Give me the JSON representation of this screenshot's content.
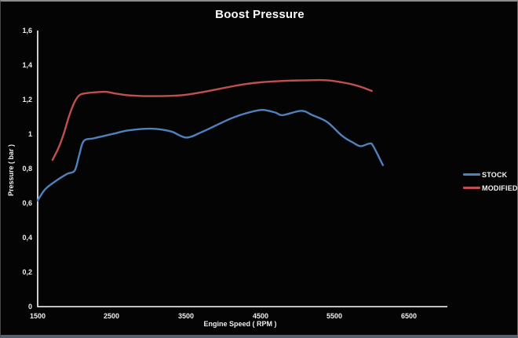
{
  "window": {
    "title": "Boost Pressure"
  },
  "chart_data": {
    "type": "line",
    "title": "Boost Pressure",
    "xlabel": "Engine Speed ( RPM )",
    "ylabel": "Pressure ( bar )",
    "background": "#000000",
    "axis_color": "#ffffff",
    "grid": false,
    "legend_position": "right",
    "x_axis": {
      "min": 1500,
      "max": 7000,
      "tick_interval": 1000
    },
    "y_axis": {
      "min": 0,
      "max": 1.6,
      "tick_interval": 0.2
    },
    "x_ticks": [
      "1500",
      "2500",
      "3500",
      "4500",
      "5500",
      "6500"
    ],
    "y_ticks": [
      "1,6",
      "1,4",
      "1,2",
      "1",
      "0,8",
      "0,6",
      "0,4",
      "0,2",
      "0"
    ],
    "series": [
      {
        "name": "STOCK",
        "color": "#4F81BD",
        "points": [
          [
            1500,
            0.615
          ],
          [
            1600,
            0.68
          ],
          [
            1750,
            0.73
          ],
          [
            1900,
            0.77
          ],
          [
            2000,
            0.79
          ],
          [
            2060,
            0.88
          ],
          [
            2120,
            0.96
          ],
          [
            2250,
            0.975
          ],
          [
            2400,
            0.99
          ],
          [
            2550,
            1.005
          ],
          [
            2700,
            1.02
          ],
          [
            2900,
            1.03
          ],
          [
            3100,
            1.03
          ],
          [
            3300,
            1.015
          ],
          [
            3500,
            0.98
          ],
          [
            3700,
            1.01
          ],
          [
            3900,
            1.05
          ],
          [
            4100,
            1.09
          ],
          [
            4300,
            1.12
          ],
          [
            4520,
            1.14
          ],
          [
            4700,
            1.125
          ],
          [
            4800,
            1.11
          ],
          [
            5050,
            1.135
          ],
          [
            5200,
            1.11
          ],
          [
            5400,
            1.07
          ],
          [
            5600,
            0.99
          ],
          [
            5750,
            0.95
          ],
          [
            5850,
            0.93
          ],
          [
            5970,
            0.945
          ],
          [
            6020,
            0.93
          ],
          [
            6150,
            0.82
          ]
        ]
      },
      {
        "name": "MODIFIED",
        "color": "#C0504D",
        "points": [
          [
            1700,
            0.85
          ],
          [
            1780,
            0.92
          ],
          [
            1850,
            1.0
          ],
          [
            1920,
            1.1
          ],
          [
            1990,
            1.18
          ],
          [
            2060,
            1.225
          ],
          [
            2150,
            1.237
          ],
          [
            2300,
            1.243
          ],
          [
            2420,
            1.245
          ],
          [
            2550,
            1.235
          ],
          [
            2700,
            1.226
          ],
          [
            2900,
            1.221
          ],
          [
            3100,
            1.22
          ],
          [
            3300,
            1.222
          ],
          [
            3500,
            1.228
          ],
          [
            3700,
            1.242
          ],
          [
            3900,
            1.258
          ],
          [
            4100,
            1.275
          ],
          [
            4300,
            1.29
          ],
          [
            4500,
            1.3
          ],
          [
            4700,
            1.306
          ],
          [
            4900,
            1.31
          ],
          [
            5100,
            1.312
          ],
          [
            5300,
            1.313
          ],
          [
            5450,
            1.31
          ],
          [
            5600,
            1.3
          ],
          [
            5750,
            1.287
          ],
          [
            5880,
            1.27
          ],
          [
            6000,
            1.25
          ]
        ]
      }
    ]
  }
}
